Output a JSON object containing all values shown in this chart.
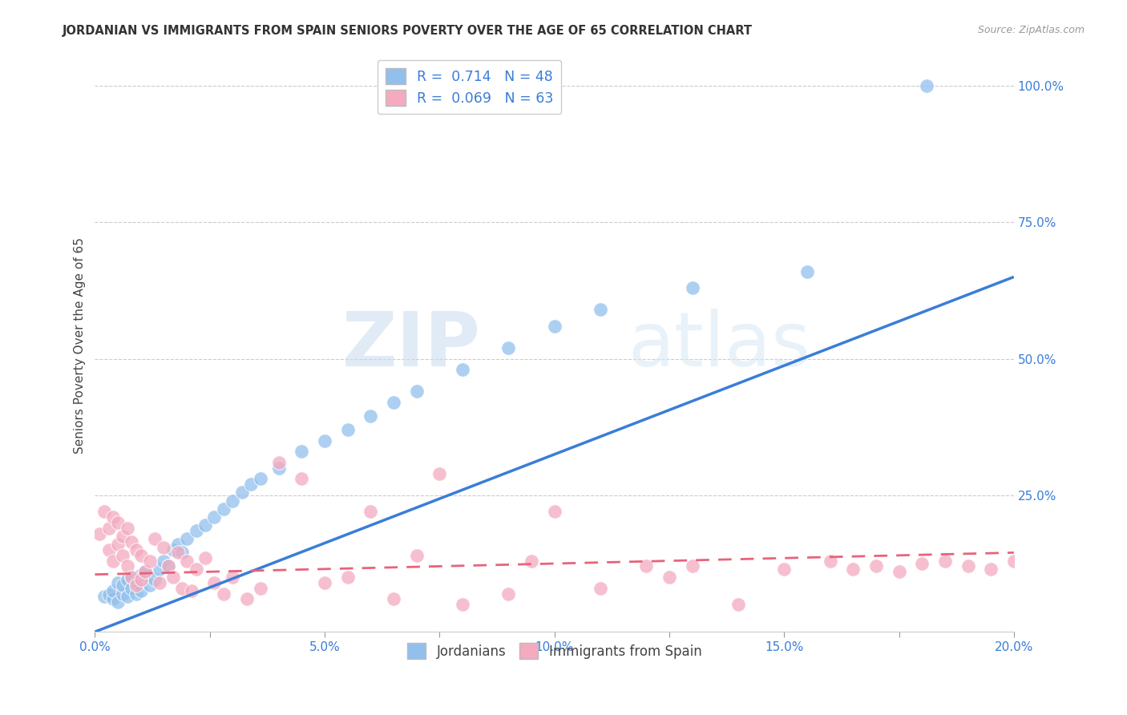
{
  "title": "JORDANIAN VS IMMIGRANTS FROM SPAIN SENIORS POVERTY OVER THE AGE OF 65 CORRELATION CHART",
  "source": "Source: ZipAtlas.com",
  "ylabel": "Seniors Poverty Over the Age of 65",
  "xlim": [
    0.0,
    0.2
  ],
  "ylim": [
    0.0,
    1.05
  ],
  "xtick_labels": [
    "0.0%",
    "",
    "5.0%",
    "",
    "10.0%",
    "",
    "15.0%",
    "",
    "20.0%"
  ],
  "xtick_values": [
    0.0,
    0.025,
    0.05,
    0.075,
    0.1,
    0.125,
    0.15,
    0.175,
    0.2
  ],
  "ytick_labels": [
    "100.0%",
    "75.0%",
    "50.0%",
    "25.0%"
  ],
  "ytick_values": [
    1.0,
    0.75,
    0.5,
    0.25
  ],
  "color_jordan": "#92C0ED",
  "color_spain": "#F4AABF",
  "color_jordan_line": "#3B7DD8",
  "color_spain_line": "#E8637A",
  "R_jordan": 0.714,
  "N_jordan": 48,
  "R_spain": 0.069,
  "N_spain": 63,
  "watermark_zip": "ZIP",
  "watermark_atlas": "atlas",
  "jordan_points_x": [
    0.002,
    0.003,
    0.004,
    0.004,
    0.005,
    0.005,
    0.006,
    0.006,
    0.007,
    0.007,
    0.008,
    0.008,
    0.009,
    0.009,
    0.01,
    0.01,
    0.011,
    0.012,
    0.013,
    0.014,
    0.015,
    0.016,
    0.017,
    0.018,
    0.019,
    0.02,
    0.022,
    0.024,
    0.026,
    0.028,
    0.03,
    0.032,
    0.034,
    0.036,
    0.04,
    0.045,
    0.05,
    0.055,
    0.06,
    0.065,
    0.07,
    0.08,
    0.09,
    0.1,
    0.11,
    0.13,
    0.155,
    0.181
  ],
  "jordan_points_y": [
    0.065,
    0.068,
    0.06,
    0.075,
    0.055,
    0.09,
    0.07,
    0.085,
    0.065,
    0.095,
    0.08,
    0.1,
    0.07,
    0.09,
    0.075,
    0.105,
    0.11,
    0.085,
    0.095,
    0.115,
    0.13,
    0.12,
    0.15,
    0.16,
    0.145,
    0.17,
    0.185,
    0.195,
    0.21,
    0.225,
    0.24,
    0.255,
    0.27,
    0.28,
    0.3,
    0.33,
    0.35,
    0.37,
    0.395,
    0.42,
    0.44,
    0.48,
    0.52,
    0.56,
    0.59,
    0.63,
    0.66,
    1.0
  ],
  "spain_points_x": [
    0.001,
    0.002,
    0.003,
    0.003,
    0.004,
    0.004,
    0.005,
    0.005,
    0.006,
    0.006,
    0.007,
    0.007,
    0.008,
    0.008,
    0.009,
    0.009,
    0.01,
    0.01,
    0.011,
    0.012,
    0.013,
    0.014,
    0.015,
    0.016,
    0.017,
    0.018,
    0.019,
    0.02,
    0.021,
    0.022,
    0.024,
    0.026,
    0.028,
    0.03,
    0.033,
    0.036,
    0.04,
    0.045,
    0.05,
    0.055,
    0.06,
    0.065,
    0.07,
    0.075,
    0.08,
    0.09,
    0.095,
    0.1,
    0.11,
    0.12,
    0.125,
    0.13,
    0.14,
    0.15,
    0.16,
    0.165,
    0.17,
    0.175,
    0.18,
    0.185,
    0.19,
    0.195,
    0.2
  ],
  "spain_points_y": [
    0.18,
    0.22,
    0.15,
    0.19,
    0.13,
    0.21,
    0.16,
    0.2,
    0.14,
    0.175,
    0.12,
    0.19,
    0.1,
    0.165,
    0.085,
    0.15,
    0.095,
    0.14,
    0.11,
    0.13,
    0.17,
    0.09,
    0.155,
    0.12,
    0.1,
    0.145,
    0.08,
    0.13,
    0.075,
    0.115,
    0.135,
    0.09,
    0.07,
    0.1,
    0.06,
    0.08,
    0.31,
    0.28,
    0.09,
    0.1,
    0.22,
    0.06,
    0.14,
    0.29,
    0.05,
    0.07,
    0.13,
    0.22,
    0.08,
    0.12,
    0.1,
    0.12,
    0.05,
    0.115,
    0.13,
    0.115,
    0.12,
    0.11,
    0.125,
    0.13,
    0.12,
    0.115,
    0.13
  ],
  "jordan_line_x": [
    0.0,
    0.2
  ],
  "jordan_line_y": [
    0.0,
    0.65
  ],
  "spain_line_x": [
    0.0,
    0.2
  ],
  "spain_line_y": [
    0.105,
    0.145
  ]
}
